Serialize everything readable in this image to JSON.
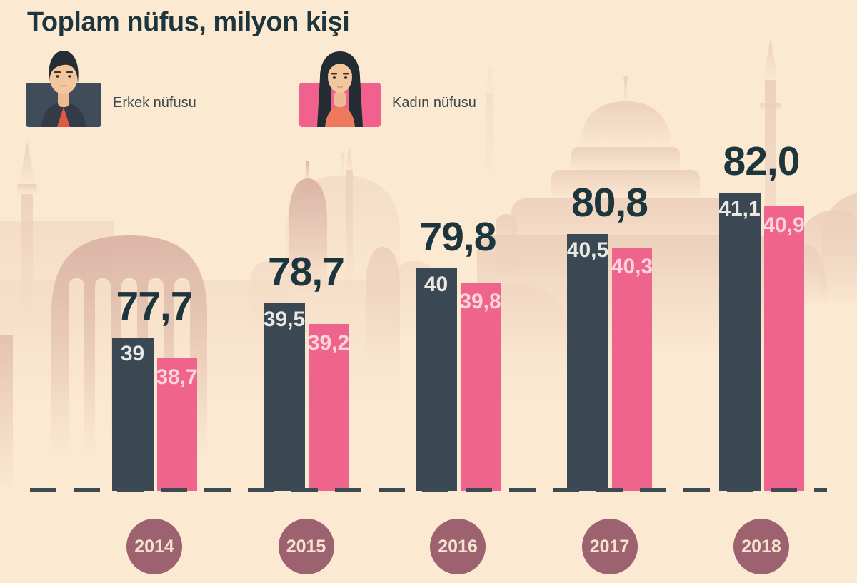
{
  "title": "Toplam nüfus, milyon kişi",
  "legend": {
    "male": {
      "label": "Erkek nüfusu"
    },
    "female": {
      "label": "Kadın nüfusu"
    }
  },
  "chart_data": {
    "type": "bar",
    "title": "Toplam nüfus, milyon kişi",
    "unit": "milyon kişi",
    "categories": [
      "2014",
      "2015",
      "2016",
      "2017",
      "2018"
    ],
    "series": [
      {
        "name": "Erkek nüfusu",
        "values": [
          39.0,
          39.5,
          40.0,
          40.5,
          41.1
        ],
        "labels": [
          "39",
          "39,5",
          "40",
          "40,5",
          "41,1"
        ],
        "color": "#3a4854"
      },
      {
        "name": "Kadın nüfusu",
        "values": [
          38.7,
          39.2,
          39.8,
          40.3,
          40.9
        ],
        "labels": [
          "38,7",
          "39,2",
          "39,8",
          "40,3",
          "40,9"
        ],
        "color": "#ef648c"
      }
    ],
    "totals": {
      "name": "Toplam nüfus",
      "values": [
        77.7,
        78.7,
        79.8,
        80.8,
        82.0
      ],
      "labels": [
        "77,7",
        "78,7",
        "79,8",
        "80,8",
        "82,0"
      ]
    },
    "axis": {
      "y_axis_hidden": true,
      "y_baseline_value": 36.8,
      "grid": false,
      "value_labels_inside_bars": true,
      "totals_above_groups": true,
      "baseline_style": "dashed"
    },
    "legend_position": "top"
  },
  "colors": {
    "background": "#fce9d2",
    "male_bar": "#3a4854",
    "female_bar": "#ef648c",
    "title_text": "#1d353c",
    "male_value_text": "#eae8e3",
    "female_value_text": "#fbd5dc",
    "year_badge": "#9c6270",
    "year_badge_text": "#f6e2cc",
    "baseline_dash": "#3d4a50",
    "legend_male_square": "#3f4d5a",
    "legend_female_square": "#f0618e",
    "skyline_light": "#f4dcc6",
    "skyline_mid": "#ecd0bc",
    "skyline_dark": "#d8b0a2"
  }
}
